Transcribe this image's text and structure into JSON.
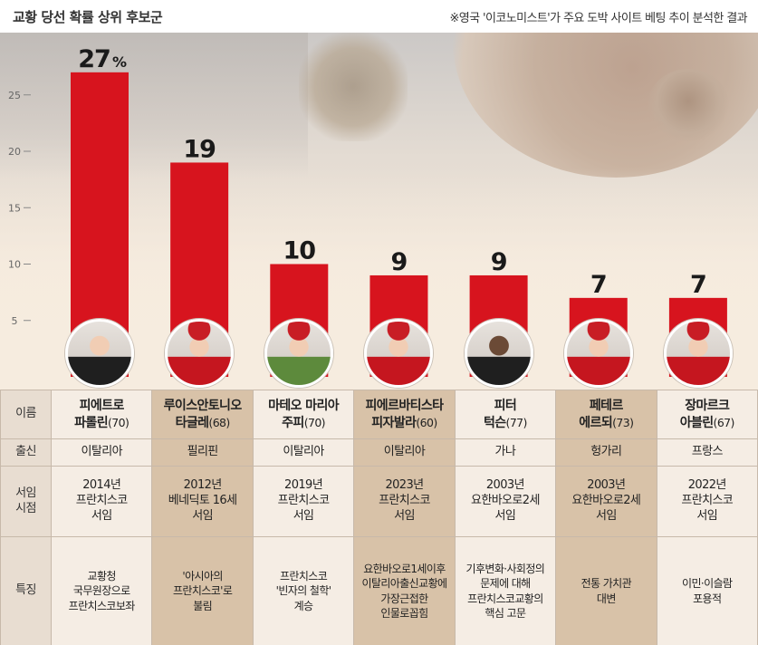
{
  "header": {
    "title": "교황 당선 확률 상위 후보군",
    "note": "※영국 '이코노미스트'가 주요 도박 사이트 베팅 추이 분석한 결과"
  },
  "chart_data": {
    "type": "bar",
    "title": "교황 당선 확률 상위 후보군",
    "categories": [
      "피에트로 파롤린",
      "루이스안토니오 타글레",
      "마테오 마리아 주피",
      "피에르바티스타 피자발라",
      "피터 턱슨",
      "페테르 에르되",
      "장마르크 아블린"
    ],
    "values": [
      27,
      19,
      10,
      9,
      9,
      7,
      7
    ],
    "value_labels": [
      "27",
      "19",
      "10",
      "9",
      "9",
      "7",
      "7"
    ],
    "first_label_suffix": "%",
    "yticks": [
      "5",
      "10",
      "15",
      "20",
      "25"
    ],
    "ylim": [
      0,
      28
    ],
    "bar_color": "#d7141e",
    "grid": false
  },
  "table": {
    "row_labels": {
      "name": "이름",
      "origin": "출신",
      "appointed": [
        "서임",
        "시점"
      ],
      "feature": "특징"
    },
    "candidates": [
      {
        "name": [
          "피에트로",
          "파롤린"
        ],
        "age": "(70)",
        "origin": "이탈리아",
        "appointed": [
          "2014년",
          "프란치스코",
          "서임"
        ],
        "feature": [
          "교황청",
          "국무원장으로",
          "프란치스코보좌"
        ]
      },
      {
        "name": [
          "루이스안토니오",
          "타글레"
        ],
        "age": "(68)",
        "origin": "필리핀",
        "appointed": [
          "2012년",
          "베네딕토 16세",
          "서임"
        ],
        "feature": [
          "'아시아의",
          "프란치스코'로",
          "불림"
        ]
      },
      {
        "name": [
          "마테오 마리아",
          "주피"
        ],
        "age": "(70)",
        "origin": "이탈리아",
        "appointed": [
          "2019년",
          "프란치스코",
          "서임"
        ],
        "feature": [
          "프란치스코",
          "'빈자의 철학'",
          "계승"
        ]
      },
      {
        "name": [
          "피에르바티스타",
          "피자발라"
        ],
        "age": "(60)",
        "origin": "이탈리아",
        "appointed": [
          "2023년",
          "프란치스코",
          "서임"
        ],
        "feature": [
          "요한바오로1세이후",
          "이탈리아출신교황에",
          "가장근접한",
          "인물로꼽힘"
        ]
      },
      {
        "name": [
          "피터",
          "턱슨"
        ],
        "age": "(77)",
        "origin": "가나",
        "appointed": [
          "2003년",
          "요한바오로2세",
          "서임"
        ],
        "feature": [
          "기후변화·사회정의",
          "문제에 대해",
          "프란치스코교황의",
          "핵심 고문"
        ]
      },
      {
        "name": [
          "페테르",
          "에르되"
        ],
        "age": "(73)",
        "origin": "헝가리",
        "appointed": [
          "2003년",
          "요한바오로2세",
          "서임"
        ],
        "feature": [
          "전통 가치관",
          "대변"
        ]
      },
      {
        "name": [
          "장마르크",
          "아블린"
        ],
        "age": "(67)",
        "origin": "프랑스",
        "appointed": [
          "2022년",
          "프란치스코",
          "서임"
        ],
        "feature": [
          "이민·이슬람",
          "포용적"
        ]
      }
    ]
  }
}
